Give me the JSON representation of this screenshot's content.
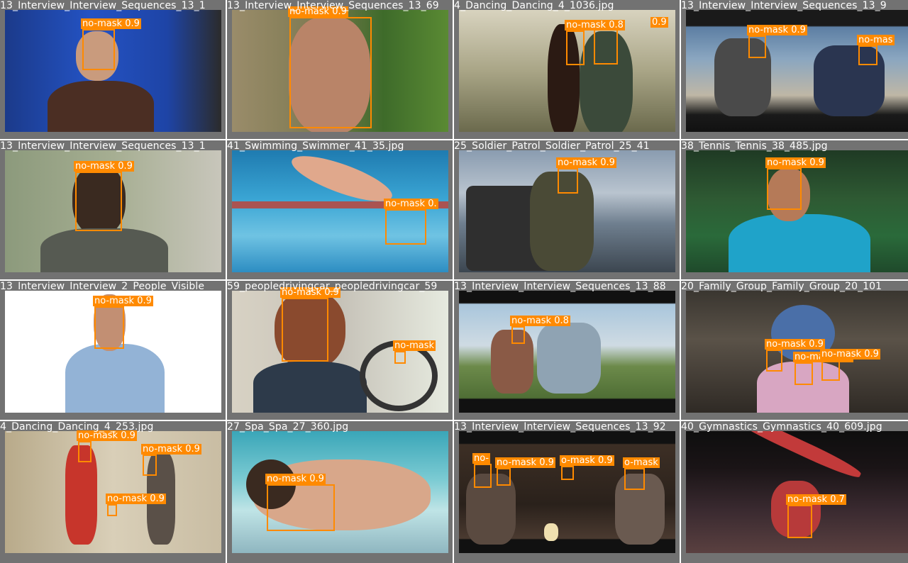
{
  "colors": {
    "box": "#ff8a00",
    "tile_bg": "#727272",
    "label_text": "#ffffff"
  },
  "tiles": [
    {
      "filename": "13_Interview_Interview_Sequences_13_1",
      "labels": [
        "no-mask 0.9"
      ]
    },
    {
      "filename": "13_Interview_Interview_Sequences_13_69",
      "labels": [
        "no-mask 0.9"
      ]
    },
    {
      "filename": "4_Dancing_Dancing_4_1036.jpg",
      "labels": [
        "no-mask 0.8",
        "0.9"
      ]
    },
    {
      "filename": "13_Interview_Interview_Sequences_13_9",
      "labels": [
        "no-mask 0.9",
        "no-mas"
      ]
    },
    {
      "filename": "13_Interview_Interview_Sequences_13_1",
      "labels": [
        "no-mask 0.9"
      ]
    },
    {
      "filename": "41_Swimming_Swimmer_41_35.jpg",
      "labels": [
        "no-mask 0."
      ]
    },
    {
      "filename": "25_Soldier_Patrol_Soldier_Patrol_25_41",
      "labels": [
        "no-mask 0.9"
      ]
    },
    {
      "filename": "38_Tennis_Tennis_38_485.jpg",
      "labels": [
        "no-mask 0.9"
      ]
    },
    {
      "filename": "13_Interview_Interview_2_People_Visible",
      "labels": [
        "no-mask 0.9"
      ]
    },
    {
      "filename": "59_peopledrivingcar_peopledrivingcar_59",
      "labels": [
        "no-mask 0.9",
        "no-mask"
      ]
    },
    {
      "filename": "13_Interview_Interview_Sequences_13_88",
      "labels": [
        "no-mask 0.8"
      ]
    },
    {
      "filename": "20_Family_Group_Family_Group_20_101",
      "labels": [
        "no-mask 0.9",
        "no-mask 0.9",
        "no-mask 0.9"
      ]
    },
    {
      "filename": "4_Dancing_Dancing_4_253.jpg",
      "labels": [
        "no-mask 0.9",
        "no-mask 0.9",
        "no-mask 0.9"
      ]
    },
    {
      "filename": "27_Spa_Spa_27_360.jpg",
      "labels": [
        "no-mask 0.9"
      ]
    },
    {
      "filename": "13_Interview_Interview_Sequences_13_92",
      "labels": [
        "no-",
        "no-mask 0.9",
        "o-mask 0.9",
        "o-mask"
      ]
    },
    {
      "filename": "40_Gymnastics_Gymnastics_40_609.jpg",
      "labels": [
        "no-mask 0.7"
      ]
    }
  ]
}
